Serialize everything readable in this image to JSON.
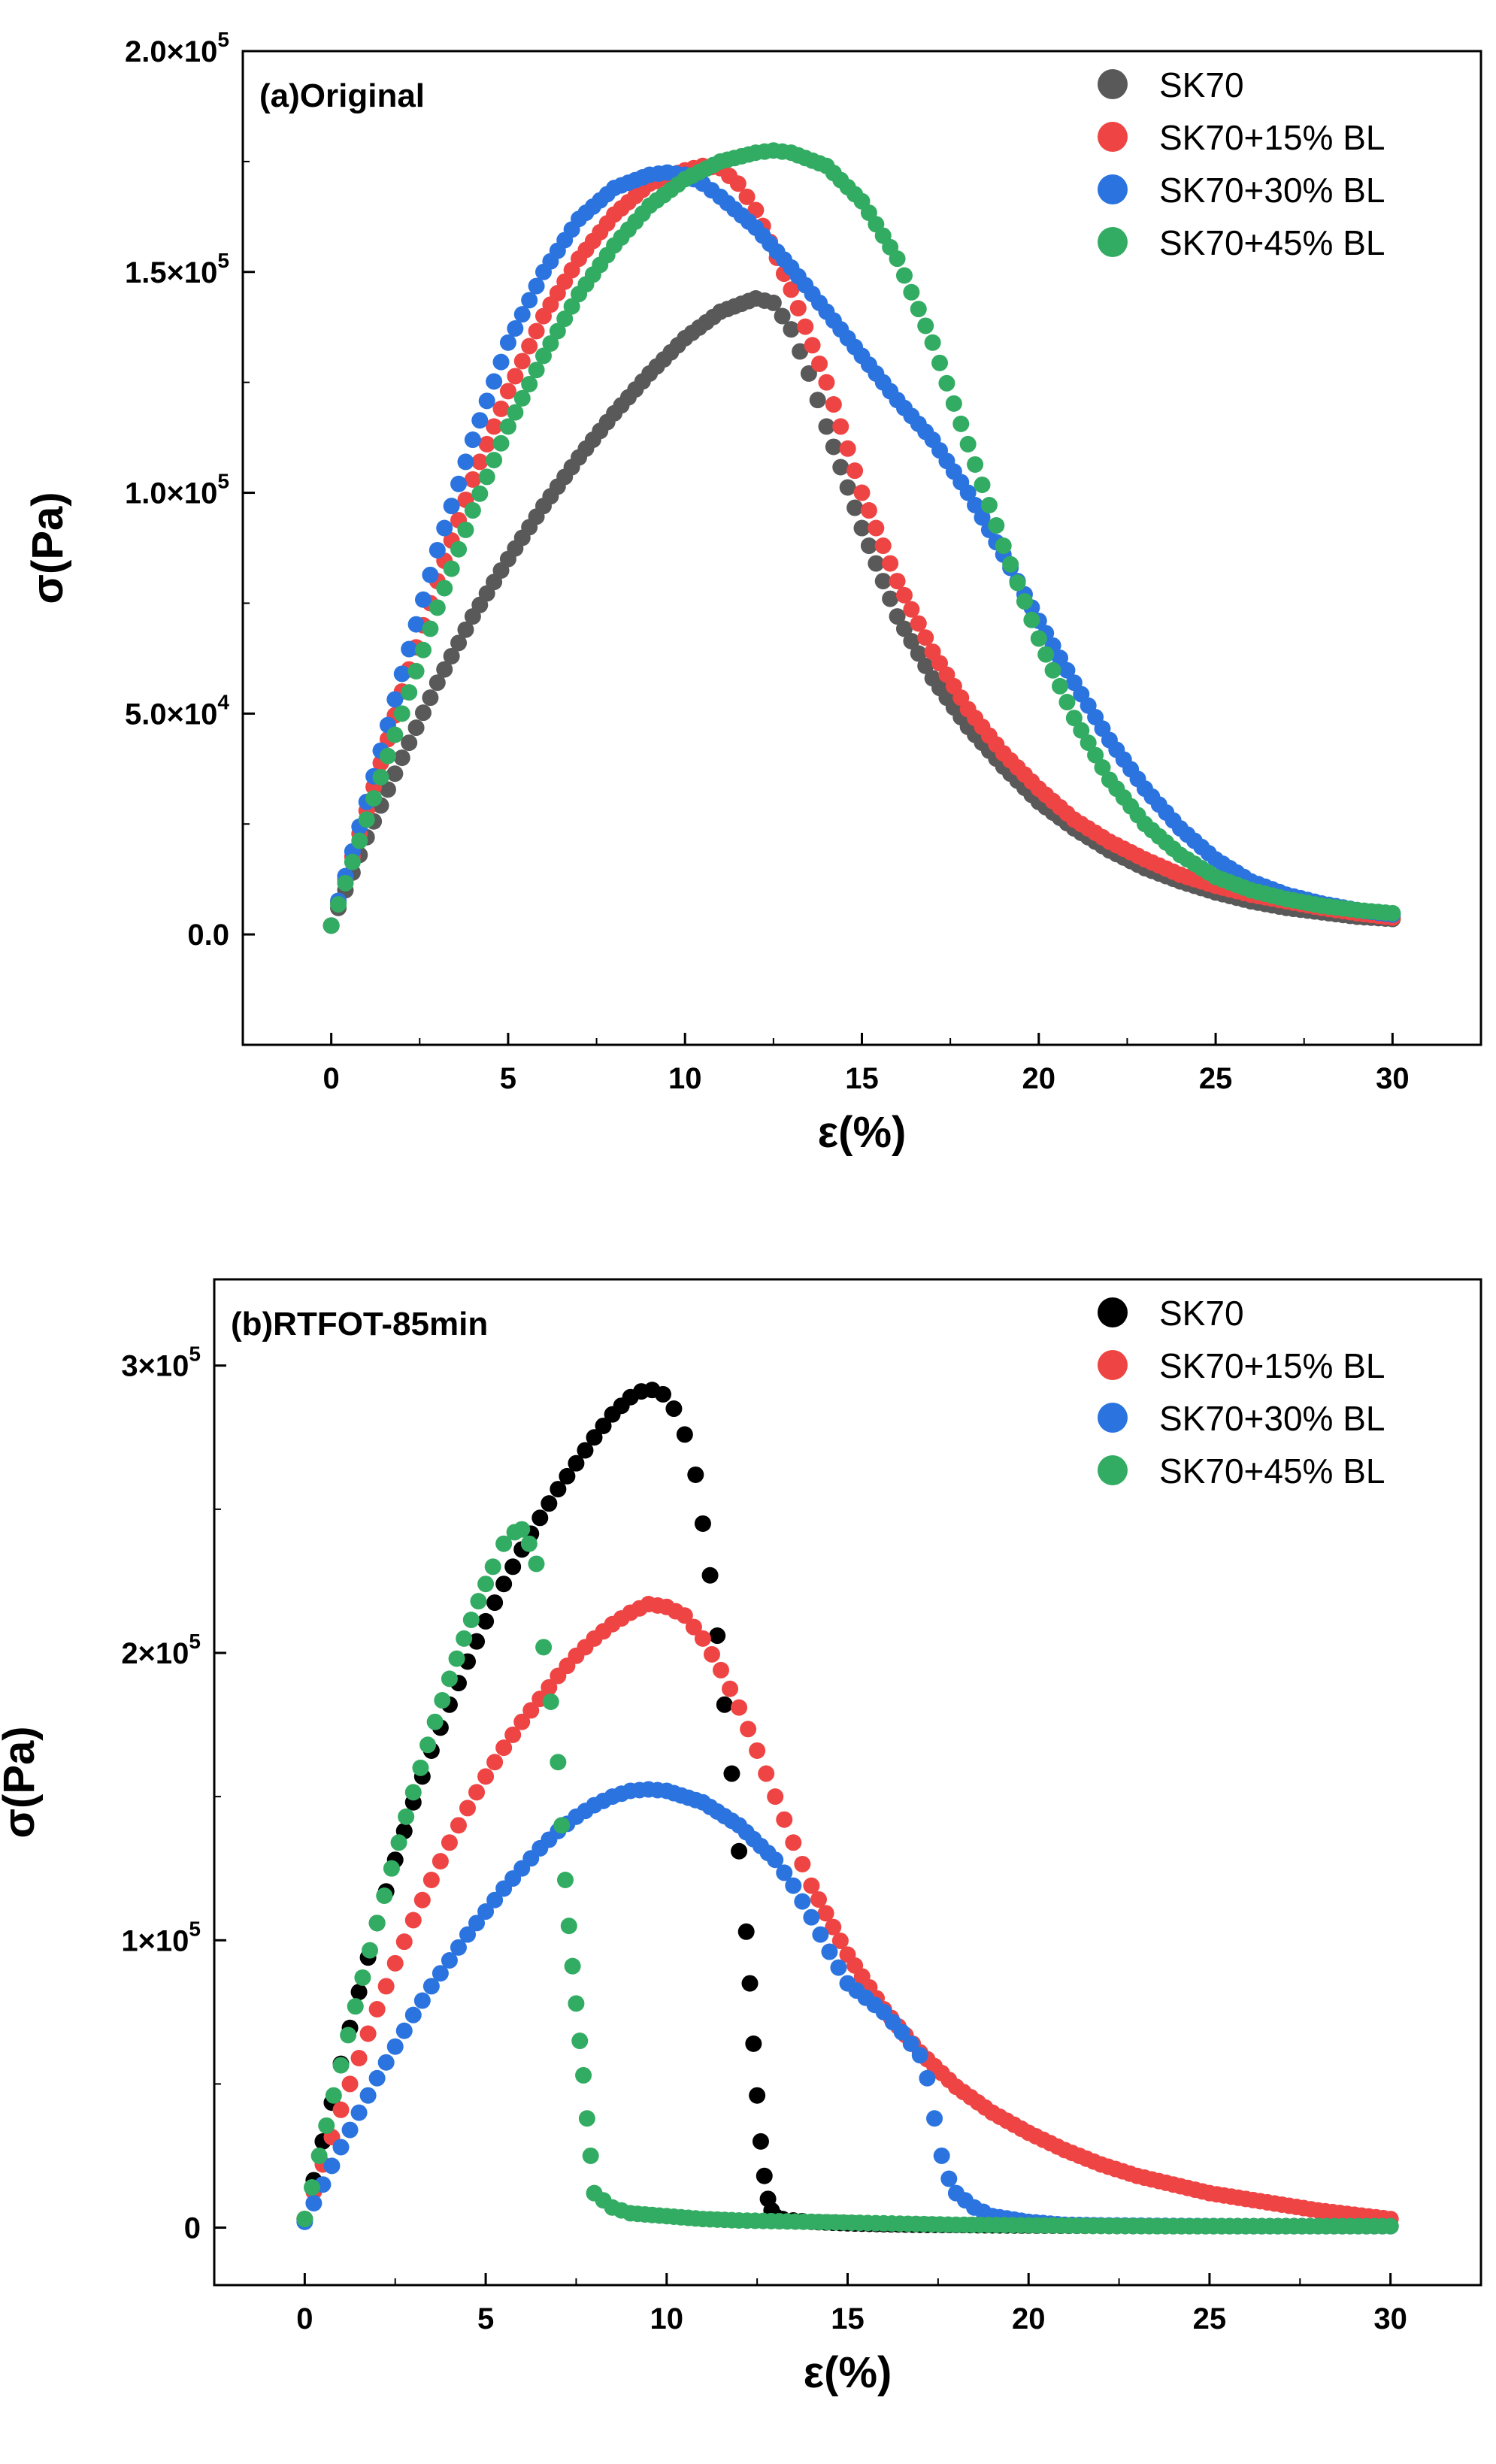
{
  "chart_data": [
    {
      "type": "scatter",
      "title": "(a)Original",
      "xlabel": "ε(%)",
      "ylabel": "σ(Pa)",
      "xlim": [
        -2.5,
        32.5
      ],
      "ylim": [
        -25000,
        200000
      ],
      "x_ticks": [
        0,
        5,
        10,
        15,
        20,
        25,
        30
      ],
      "x_tick_labels": [
        "0",
        "5",
        "10",
        "15",
        "20",
        "25",
        "30"
      ],
      "y_ticks": [
        0,
        50000,
        100000,
        150000,
        200000
      ],
      "y_tick_labels": [
        "0.0",
        "5.0×10",
        "1.0×10",
        "1.5×10",
        "2.0×10"
      ],
      "y_tick_exponents": [
        "",
        "4",
        "5",
        "5",
        "5"
      ],
      "legend_position": "top-right",
      "series": [
        {
          "name": "SK70",
          "color": "#595959",
          "x": [
            0,
            1,
            2,
            3,
            4,
            5,
            6,
            7,
            8,
            9,
            10,
            11,
            12,
            12.5,
            13,
            13.5,
            14,
            15,
            16,
            17,
            18,
            19,
            20,
            21,
            22,
            23,
            24,
            25,
            26,
            27,
            28,
            29,
            30
          ],
          "y": [
            2000,
            22000,
            40000,
            57000,
            72000,
            85000,
            97000,
            108000,
            118000,
            127000,
            135000,
            141000,
            144000,
            143000,
            137000,
            127000,
            115000,
            92000,
            72000,
            58000,
            47000,
            38000,
            30000,
            24000,
            19000,
            15000,
            12000,
            9500,
            7500,
            6000,
            5000,
            4000,
            3500
          ]
        },
        {
          "name": "SK70+15% BL",
          "color": "#ef4444",
          "x": [
            0,
            1,
            2,
            3,
            4,
            5,
            6,
            7,
            8,
            9,
            10,
            10.5,
            11,
            11.5,
            12,
            13,
            14,
            15,
            16,
            17,
            18,
            19,
            20,
            21,
            22,
            23,
            24,
            25,
            26,
            27,
            28,
            29,
            30
          ],
          "y": [
            2000,
            28000,
            55000,
            80000,
            103000,
            123000,
            140000,
            153000,
            163000,
            170000,
            173000,
            174000,
            173500,
            170000,
            164000,
            146000,
            125000,
            100000,
            80000,
            64000,
            51000,
            41000,
            33000,
            26000,
            21000,
            17000,
            13500,
            11000,
            9000,
            7500,
            6000,
            4800,
            3800
          ]
        },
        {
          "name": "SK70+30% BL",
          "color": "#2b74e0",
          "x": [
            0,
            1,
            2,
            3,
            4,
            5,
            6,
            7,
            8,
            9,
            9.5,
            10,
            10.5,
            11,
            12,
            13,
            14,
            15,
            16,
            17,
            18,
            19,
            20,
            21,
            22,
            23,
            24,
            25,
            26,
            27,
            28,
            29,
            30
          ],
          "y": [
            2000,
            30000,
            59000,
            87000,
            112000,
            134000,
            150000,
            162000,
            169000,
            172000,
            172500,
            172000,
            170000,
            167000,
            160000,
            151000,
            141000,
            131000,
            121000,
            112000,
            100000,
            86000,
            71000,
            57000,
            44000,
            33000,
            24000,
            17000,
            12000,
            9000,
            7000,
            5500,
            4500
          ]
        },
        {
          "name": "SK70+45% BL",
          "color": "#32ac62",
          "x": [
            0,
            1,
            2,
            3,
            4,
            5,
            6,
            7,
            8,
            9,
            10,
            11,
            12,
            12.5,
            13,
            14,
            15,
            16,
            17,
            18,
            19,
            20,
            21,
            22,
            23,
            24,
            25,
            26,
            27,
            28,
            29,
            30
          ],
          "y": [
            2000,
            26000,
            50000,
            74000,
            96000,
            115000,
            131000,
            145000,
            156000,
            165000,
            171000,
            175000,
            177000,
            177500,
            177000,
            174000,
            166000,
            153000,
            134000,
            111000,
            88000,
            67000,
            49000,
            35000,
            25000,
            18000,
            13000,
            10000,
            8000,
            6500,
            5500,
            4800
          ]
        }
      ]
    },
    {
      "type": "scatter",
      "title": "(b)RTFOT-85min",
      "xlabel": "ε(%)",
      "ylabel": "σ(Pa)",
      "xlim": [
        -2.5,
        32.5
      ],
      "ylim": [
        -20000,
        330000
      ],
      "x_ticks": [
        0,
        5,
        10,
        15,
        20,
        25,
        30
      ],
      "x_tick_labels": [
        "0",
        "5",
        "10",
        "15",
        "20",
        "25",
        "30"
      ],
      "y_ticks": [
        0,
        100000,
        200000,
        300000
      ],
      "y_tick_labels": [
        "0",
        "1×10",
        "2×10",
        "3×10"
      ],
      "y_tick_exponents": [
        "",
        "5",
        "5",
        "5"
      ],
      "legend_position": "top-right",
      "series": [
        {
          "name": "SK70",
          "color": "#000000",
          "x": [
            0,
            0.5,
            1,
            1.5,
            2,
            2.5,
            3,
            3.5,
            4,
            4.5,
            5,
            5.5,
            6,
            6.5,
            7,
            7.5,
            8,
            8.5,
            9,
            9.3,
            9.6,
            9.9,
            10.2,
            10.5,
            10.8,
            11.0,
            11.2,
            11.4,
            11.6,
            11.8,
            12.0,
            12.2,
            12.3,
            12.4,
            12.5,
            12.6,
            12.7,
            12.8,
            12.9,
            13.0,
            13.2,
            13.5,
            14,
            15,
            16,
            17,
            18,
            19,
            20,
            22,
            24,
            26,
            28,
            30
          ],
          "y": [
            3000,
            30000,
            57000,
            82000,
            106000,
            128000,
            148000,
            166000,
            182000,
            197000,
            211000,
            224000,
            236000,
            247000,
            257000,
            266000,
            275000,
            283000,
            289000,
            291000,
            291500,
            290000,
            285000,
            276000,
            262000,
            245000,
            227000,
            206000,
            182000,
            158000,
            131000,
            103000,
            85000,
            64000,
            46000,
            30000,
            18000,
            10000,
            6000,
            4000,
            3000,
            2500,
            2000,
            1500,
            1200,
            1000,
            900,
            800,
            700,
            600,
            500,
            500,
            500,
            500
          ]
        },
        {
          "name": "SK70+15% BL",
          "color": "#ef4444",
          "x": [
            0,
            0.5,
            1,
            1.5,
            2,
            2.5,
            3,
            3.5,
            4,
            4.5,
            5,
            5.5,
            6,
            6.5,
            7,
            7.5,
            8,
            8.5,
            9,
            9.5,
            10,
            10.5,
            11,
            11.5,
            12,
            12.5,
            13,
            13.5,
            14,
            15,
            16,
            17,
            18,
            19,
            20,
            21,
            22,
            23,
            24,
            25,
            26,
            27,
            28,
            29,
            30
          ],
          "y": [
            3000,
            22000,
            41000,
            59000,
            76000,
            92000,
            107000,
            121000,
            134000,
            146000,
            157000,
            167000,
            176000,
            184000,
            192000,
            199000,
            205000,
            210000,
            214000,
            217000,
            216000,
            213000,
            205000,
            194000,
            181000,
            166000,
            150000,
            134000,
            119000,
            95000,
            76000,
            61000,
            49000,
            40000,
            33000,
            27000,
            22000,
            18000,
            15000,
            12000,
            10000,
            8000,
            6000,
            4500,
            3000
          ]
        },
        {
          "name": "SK70+30% BL",
          "color": "#2b74e0",
          "x": [
            0,
            0.5,
            1,
            1.5,
            2,
            2.5,
            3,
            3.5,
            4,
            4.5,
            5,
            5.5,
            6,
            6.5,
            7,
            7.5,
            8,
            8.5,
            9,
            9.5,
            10,
            11,
            12,
            13,
            13.5,
            14,
            14.5,
            15,
            15.5,
            16,
            16.5,
            17,
            17.2,
            17.4,
            17.6,
            17.8,
            18,
            18.5,
            19,
            20,
            21,
            22,
            24,
            26,
            28,
            30
          ],
          "y": [
            2000,
            15000,
            28000,
            40000,
            52000,
            63000,
            74000,
            84000,
            93000,
            102000,
            110000,
            118000,
            125000,
            132000,
            138000,
            143000,
            147000,
            150000,
            152000,
            152500,
            152000,
            148000,
            140000,
            128000,
            119000,
            108000,
            96000,
            85000,
            80000,
            75000,
            68000,
            60000,
            52000,
            38000,
            25000,
            17000,
            12000,
            7000,
            4000,
            2000,
            1000,
            800,
            600,
            500,
            500,
            500
          ]
        },
        {
          "name": "SK70+45% BL",
          "color": "#32ac62",
          "x": [
            0,
            0.4,
            0.8,
            1.2,
            1.6,
            2.0,
            2.4,
            2.8,
            3.2,
            3.6,
            4.0,
            4.4,
            4.8,
            5.2,
            5.5,
            5.8,
            6.0,
            6.2,
            6.4,
            6.6,
            6.8,
            7.0,
            7.1,
            7.2,
            7.3,
            7.4,
            7.5,
            7.6,
            7.7,
            7.8,
            7.9,
            8.0,
            8.5,
            9,
            10,
            11,
            12,
            14,
            16,
            18,
            20,
            22,
            24,
            26,
            28,
            30
          ],
          "y": [
            3000,
            25000,
            46000,
            67000,
            87000,
            106000,
            125000,
            143000,
            160000,
            176000,
            191000,
            205000,
            218000,
            230000,
            238000,
            242000,
            243000,
            238000,
            231000,
            202000,
            183000,
            162000,
            140000,
            121000,
            105000,
            91000,
            78000,
            65000,
            53000,
            38000,
            25000,
            12000,
            7000,
            5000,
            4000,
            3000,
            2500,
            2000,
            1500,
            1000,
            800,
            600,
            500,
            500,
            500,
            500
          ]
        }
      ]
    }
  ]
}
